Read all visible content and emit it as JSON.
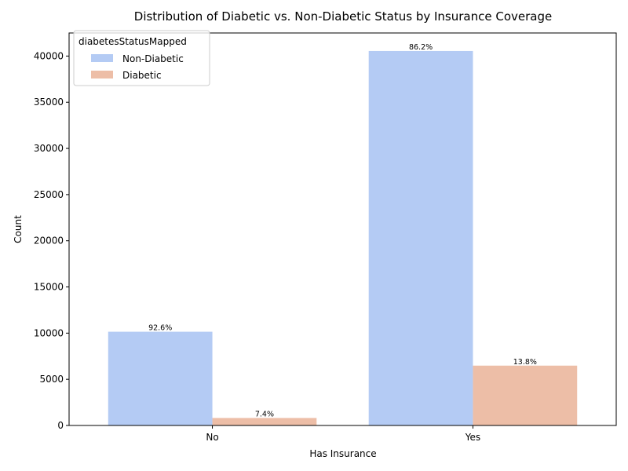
{
  "chart_data": {
    "type": "bar",
    "title": "Distribution of Diabetic vs. Non-Diabetic Status by Insurance Coverage",
    "xlabel": "Has Insurance",
    "ylabel": "Count",
    "categories": [
      "No",
      "Yes"
    ],
    "ylim": [
      0,
      42500
    ],
    "yticks": [
      0,
      5000,
      10000,
      15000,
      20000,
      25000,
      30000,
      35000,
      40000
    ],
    "grid": false,
    "legend": {
      "title": "diabetesStatusMapped",
      "placement": "top-left"
    },
    "series": [
      {
        "name": "Non-Diabetic",
        "color": "#b4cbf4",
        "values": [
          10150,
          40550
        ],
        "labels": [
          "92.6%",
          "86.2%"
        ]
      },
      {
        "name": "Diabetic",
        "color": "#edbea7",
        "values": [
          810,
          6480
        ],
        "labels": [
          "7.4%",
          "13.8%"
        ]
      }
    ]
  }
}
